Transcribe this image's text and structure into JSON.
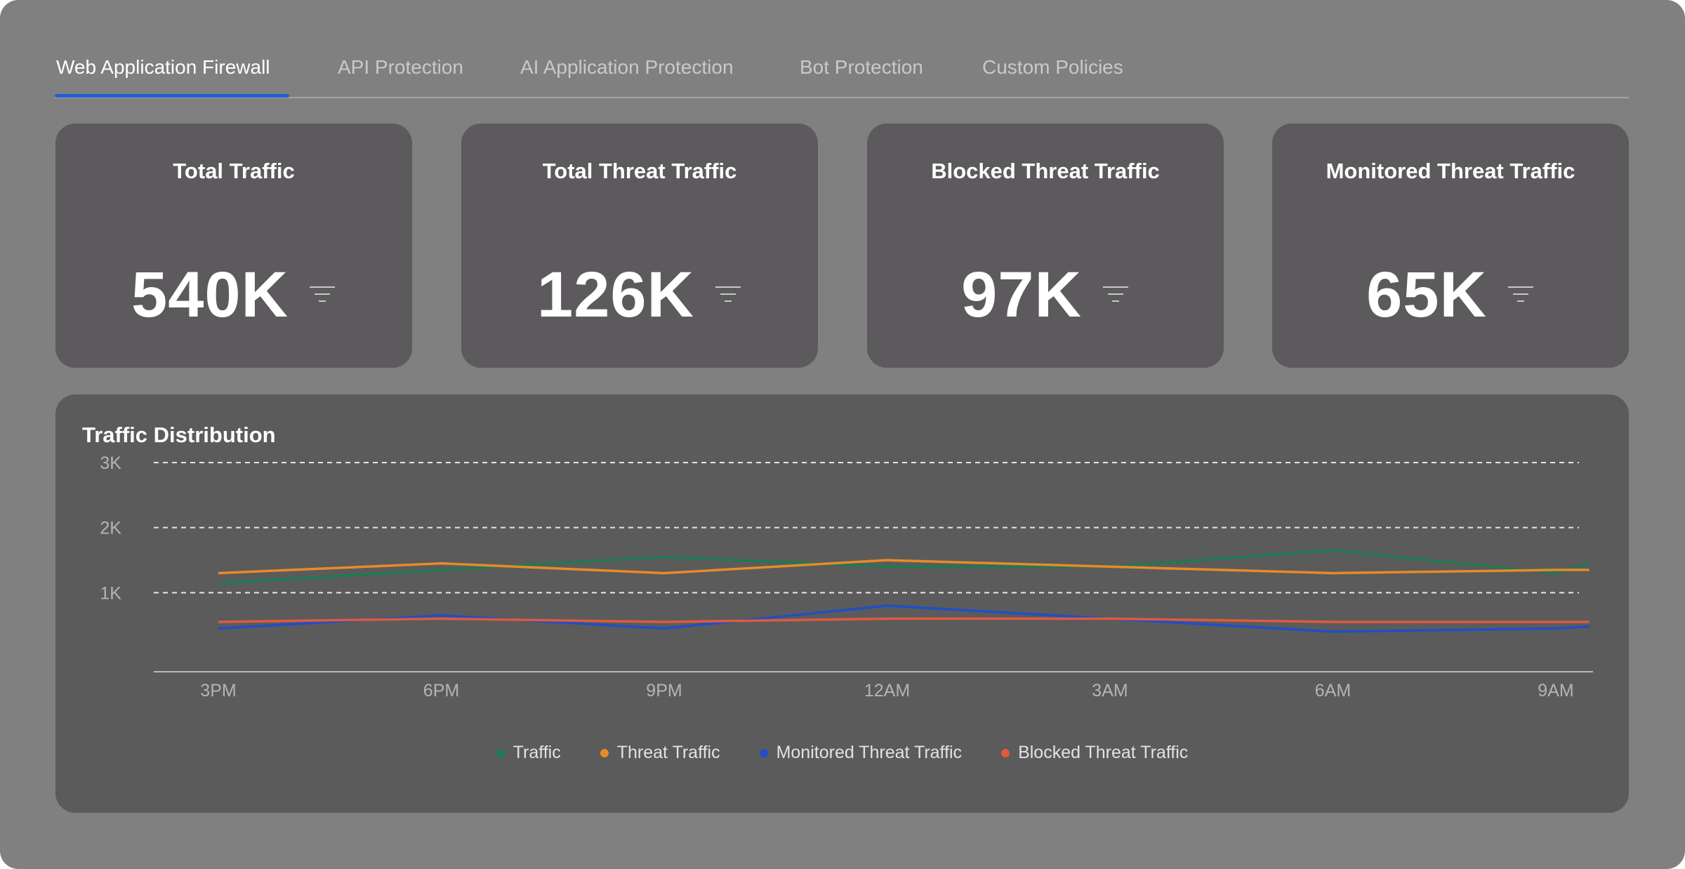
{
  "tabs": [
    {
      "label": "Web Application Firewall",
      "active": true
    },
    {
      "label": "API Protection",
      "active": false
    },
    {
      "label": "AI Application Protection",
      "active": false
    },
    {
      "label": "Bot Protection",
      "active": false
    },
    {
      "label": "Custom Policies",
      "active": false
    }
  ],
  "cards": [
    {
      "title": "Total Traffic",
      "value": "540K",
      "icon": "filter-icon"
    },
    {
      "title": "Total Threat Traffic",
      "value": "126K",
      "icon": "filter-icon"
    },
    {
      "title": "Blocked Threat Traffic",
      "value": "97K",
      "icon": "filter-icon"
    },
    {
      "title": "Monitored Threat Traffic",
      "value": "65K",
      "icon": "filter-icon"
    }
  ],
  "colors": {
    "tab_active_underline": "#1f5fd6",
    "traffic": "#1e7a52",
    "threat_traffic": "#e98a2a",
    "monitored_threat_traffic": "#1f4fc4",
    "blocked_threat_traffic": "#e0593e"
  },
  "chart_panel": {
    "title": "Traffic Distribution"
  },
  "chart_data": {
    "type": "line",
    "title": "Traffic Distribution",
    "xlabel": "",
    "ylabel": "",
    "x_ticks": [
      "3PM",
      "6PM",
      "9PM",
      "12AM",
      "3AM",
      "6AM",
      "9AM"
    ],
    "y_ticks": [
      "1K",
      "2K",
      "3K"
    ],
    "ylim": [
      0,
      3000
    ],
    "grid": true,
    "legend_position": "bottom",
    "series": [
      {
        "name": "Traffic",
        "color": "#1e7a52",
        "points": [
          [
            0.0,
            1150
          ],
          [
            1.0,
            1350
          ],
          [
            2.0,
            1550
          ],
          [
            3.0,
            1400
          ],
          [
            4.0,
            1400
          ],
          [
            5.0,
            1650
          ],
          [
            6.0,
            1300
          ],
          [
            6.15,
            1450
          ]
        ]
      },
      {
        "name": "Threat Traffic",
        "color": "#e98a2a",
        "points": [
          [
            0.0,
            1300
          ],
          [
            1.0,
            1450
          ],
          [
            2.0,
            1300
          ],
          [
            3.0,
            1500
          ],
          [
            4.0,
            1400
          ],
          [
            5.0,
            1300
          ],
          [
            6.0,
            1350
          ],
          [
            6.15,
            1350
          ]
        ]
      },
      {
        "name": "Monitored Threat Traffic",
        "color": "#1f4fc4",
        "points": [
          [
            0.0,
            450
          ],
          [
            1.0,
            650
          ],
          [
            2.0,
            450
          ],
          [
            3.0,
            800
          ],
          [
            4.0,
            600
          ],
          [
            5.0,
            400
          ],
          [
            6.0,
            450
          ],
          [
            6.15,
            480
          ]
        ]
      },
      {
        "name": "Blocked Threat Traffic",
        "color": "#e0593e",
        "points": [
          [
            0.0,
            550
          ],
          [
            1.0,
            600
          ],
          [
            2.0,
            550
          ],
          [
            3.0,
            600
          ],
          [
            4.0,
            600
          ],
          [
            5.0,
            550
          ],
          [
            6.0,
            550
          ],
          [
            6.15,
            550
          ]
        ]
      }
    ]
  }
}
